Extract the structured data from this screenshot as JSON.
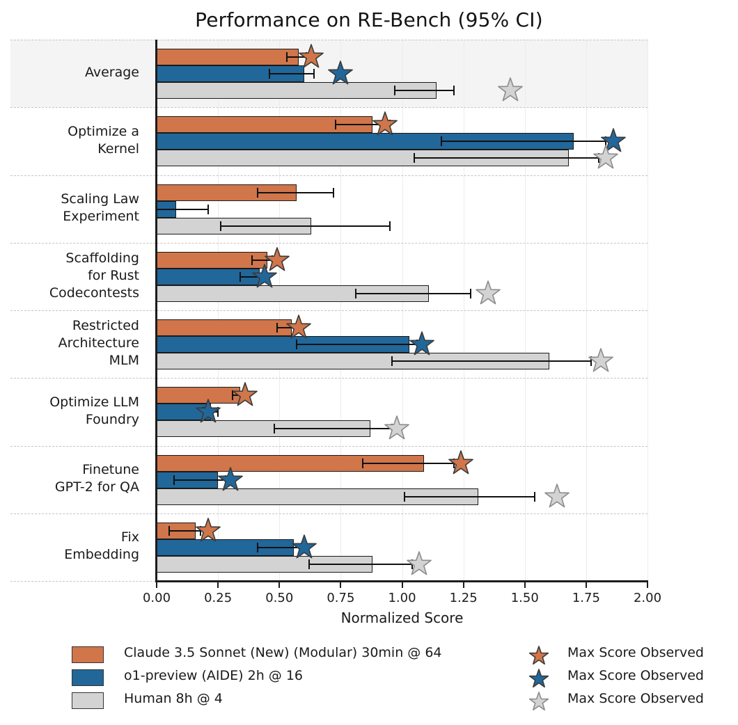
{
  "title": "Performance on RE-Bench (95% CI)",
  "chart_data": {
    "type": "bar",
    "orientation": "horizontal",
    "title": "Performance on RE-Bench (95% CI)",
    "xlabel": "Normalized Score",
    "xlim": [
      0,
      2
    ],
    "xticks": [
      "0.00",
      "0.25",
      "0.50",
      "0.75",
      "1.00",
      "1.25",
      "1.50",
      "1.75",
      "2.00"
    ],
    "grid": "light vertical gridlines, dashed horizontal row separators",
    "legend_position": "bottom",
    "highlighted_category": "Average",
    "max_marker_label": "Max Score Observed",
    "categories": [
      {
        "name": "Average",
        "lines": [
          "Average"
        ],
        "highlight": true
      },
      {
        "name": "Optimize a Kernel",
        "lines": [
          "Optimize a",
          "Kernel"
        ],
        "highlight": false
      },
      {
        "name": "Scaling Law Experiment",
        "lines": [
          "Scaling Law",
          "Experiment"
        ],
        "highlight": false
      },
      {
        "name": "Scaffolding for Rust Codecontests",
        "lines": [
          "Scaffolding",
          "for Rust",
          "Codecontests"
        ],
        "highlight": false
      },
      {
        "name": "Restricted Architecture MLM",
        "lines": [
          "Restricted",
          "Architecture",
          "MLM"
        ],
        "highlight": false
      },
      {
        "name": "Optimize LLM Foundry",
        "lines": [
          "Optimize LLM",
          "Foundry"
        ],
        "highlight": false
      },
      {
        "name": "Finetune GPT-2 for QA",
        "lines": [
          "Finetune",
          "GPT-2 for QA"
        ],
        "highlight": false
      },
      {
        "name": "Fix Embedding",
        "lines": [
          "Fix",
          "Embedding"
        ],
        "highlight": false
      }
    ],
    "series": [
      {
        "name": "Claude 3.5 Sonnet (New) (Modular) 30min @ 64",
        "color": "#D0764A",
        "edge_color": "#1a1a1a",
        "star_stroke": "#3a3a3a",
        "values": [
          0.58,
          0.88,
          0.57,
          0.45,
          0.55,
          0.34,
          1.09,
          0.16
        ],
        "ci_low": [
          0.53,
          0.73,
          0.41,
          0.39,
          0.49,
          0.31,
          0.84,
          0.05
        ],
        "ci_high": [
          0.61,
          0.95,
          0.72,
          0.47,
          0.57,
          0.35,
          1.21,
          0.18
        ],
        "max_observed": [
          0.63,
          0.93,
          null,
          0.49,
          0.58,
          0.36,
          1.24,
          0.21
        ]
      },
      {
        "name": "o1-preview (AIDE) 2h @ 16",
        "color": "#21679A",
        "edge_color": "#1a1a1a",
        "star_stroke": "#3a3a3a",
        "values": [
          0.6,
          1.7,
          0.08,
          0.42,
          1.03,
          0.22,
          0.25,
          0.56
        ],
        "ci_low": [
          0.46,
          1.16,
          0.0,
          0.34,
          0.57,
          0.19,
          0.07,
          0.41
        ],
        "ci_high": [
          0.64,
          1.83,
          0.21,
          0.43,
          1.06,
          0.25,
          0.28,
          0.59
        ],
        "max_observed": [
          0.75,
          1.86,
          null,
          0.44,
          1.08,
          0.21,
          0.3,
          0.6
        ]
      },
      {
        "name": "Human 8h @ 4",
        "color": "#D3D3D3",
        "edge_color": "#1a1a1a",
        "star_stroke": "#8c8c8c",
        "values": [
          1.14,
          1.68,
          0.63,
          1.11,
          1.6,
          0.87,
          1.31,
          0.88
        ],
        "ci_low": [
          0.97,
          1.05,
          0.26,
          0.81,
          0.96,
          0.48,
          1.01,
          0.62
        ],
        "ci_high": [
          1.21,
          1.8,
          0.95,
          1.28,
          1.77,
          0.96,
          1.54,
          1.04
        ],
        "max_observed": [
          1.44,
          1.83,
          null,
          1.35,
          1.81,
          0.98,
          1.63,
          1.07
        ]
      }
    ]
  },
  "legend": {
    "series_labels": [
      "Claude 3.5 Sonnet (New) (Modular) 30min @ 64",
      "o1-preview (AIDE) 2h @ 16",
      "Human 8h @ 4"
    ],
    "max_label": "Max Score Observed"
  }
}
